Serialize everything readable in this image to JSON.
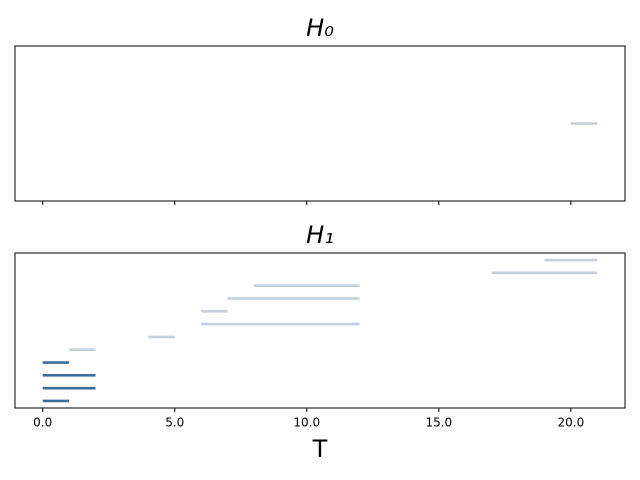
{
  "chart_data": [
    {
      "type": "barcode",
      "title": "H₀",
      "intervals": [
        {
          "birth": 20,
          "death": 21,
          "color": "#c6d0dc"
        }
      ],
      "xlim": [
        -1.05,
        22.05
      ]
    },
    {
      "type": "barcode",
      "title": "H₁",
      "xlabel": "T",
      "intervals": [
        {
          "birth": 0,
          "death": 1,
          "color": "#3b6e9a"
        },
        {
          "birth": 0,
          "death": 2,
          "color": "#3b6e9a"
        },
        {
          "birth": 0,
          "death": 2,
          "color": "#3b6e9a"
        },
        {
          "birth": 0,
          "death": 1,
          "color": "#3b6e9a"
        },
        {
          "birth": 1,
          "death": 2,
          "color": "#c6d0dc"
        },
        {
          "birth": 4,
          "death": 5,
          "color": "#c6d0dc"
        },
        {
          "birth": 6,
          "death": 12,
          "color": "#c6d0dc"
        },
        {
          "birth": 6,
          "death": 7,
          "color": "#c6d0dc"
        },
        {
          "birth": 7,
          "death": 12,
          "color": "#c6d0dc"
        },
        {
          "birth": 8,
          "death": 12,
          "color": "#c6d0dc"
        },
        {
          "birth": 17,
          "death": 21,
          "color": "#c6d0dc"
        },
        {
          "birth": 19,
          "death": 21,
          "color": "#c6d0dc"
        }
      ],
      "xlim": [
        -1.05,
        22.05
      ],
      "xticks": [
        {
          "value": 0,
          "label": "0.0"
        },
        {
          "value": 5,
          "label": "5.0"
        },
        {
          "value": 10,
          "label": "10.0"
        },
        {
          "value": 15,
          "label": "15.0"
        },
        {
          "value": 20,
          "label": "20.0"
        }
      ]
    }
  ]
}
